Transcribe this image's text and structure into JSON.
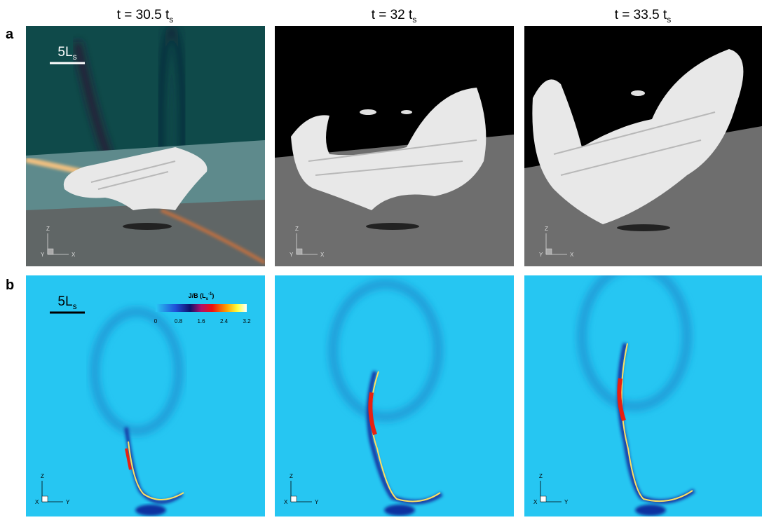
{
  "panels": {
    "columns": [
      {
        "label": "t = 30.5 t",
        "subscript": "s"
      },
      {
        "label": "t = 32 t",
        "subscript": "s"
      },
      {
        "label": "t = 33.5 t",
        "subscript": "s"
      }
    ],
    "rows": [
      "a",
      "b"
    ]
  },
  "scale_bar": {
    "label": "5L",
    "subscript": "s"
  },
  "colorbar": {
    "title": "J/B (L",
    "subscript": "s",
    "superscript": "-1",
    "title_end": ")",
    "ticks": [
      0,
      0.8,
      1.6,
      2.4,
      3.2
    ]
  },
  "axes": {
    "top": [
      "Z",
      "Y",
      "X"
    ],
    "bottom": [
      "Z",
      "X",
      "Y"
    ]
  }
}
